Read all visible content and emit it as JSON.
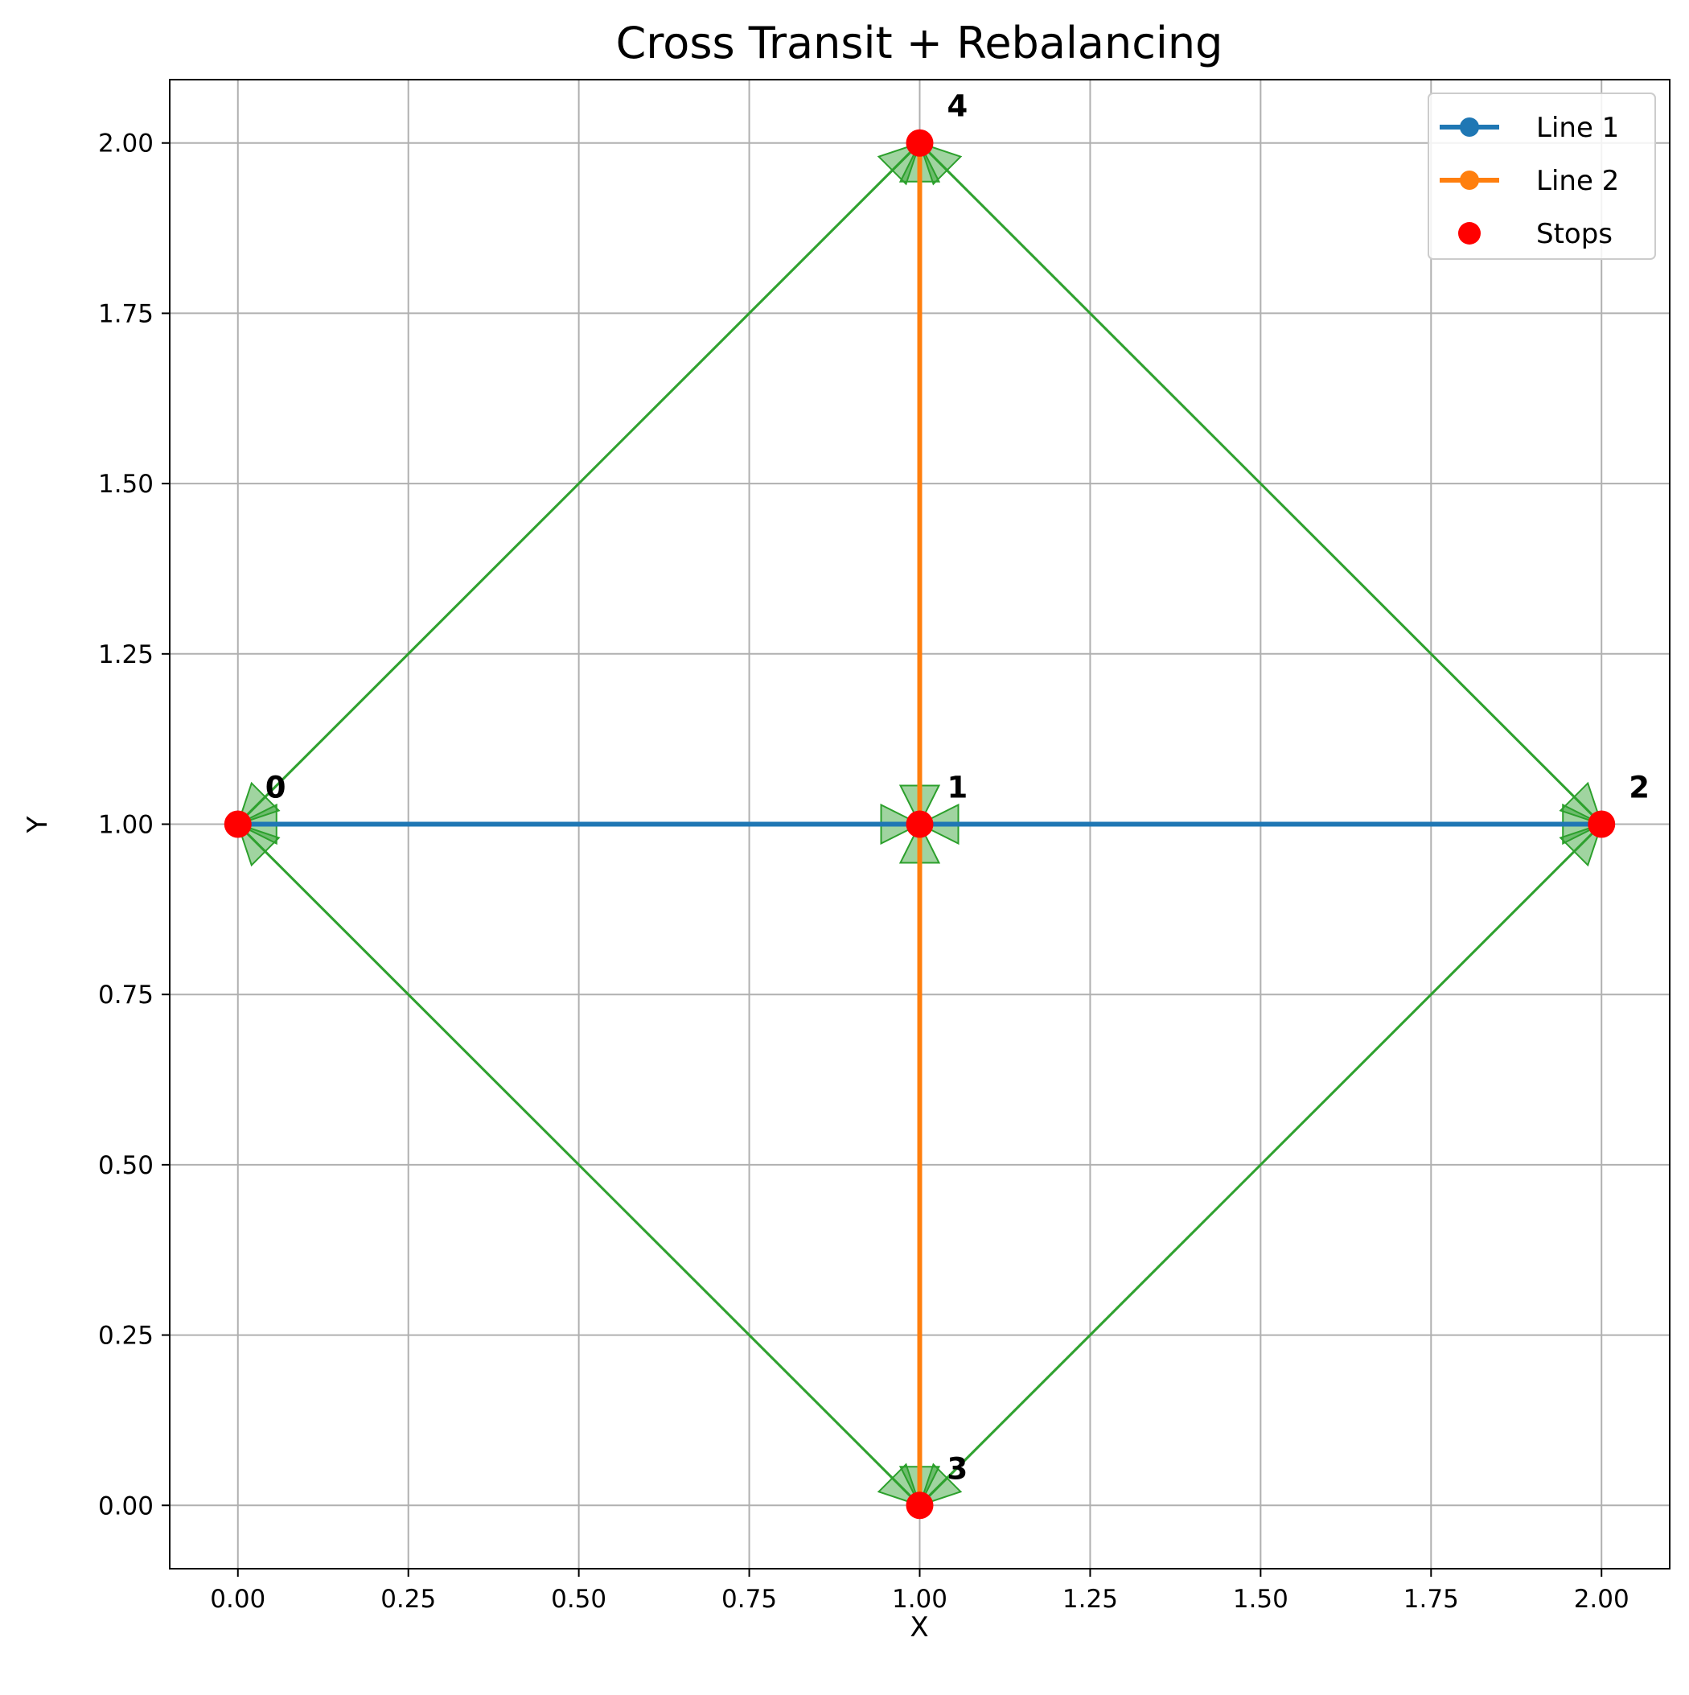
{
  "chart_data": {
    "type": "line",
    "title": "Cross Transit + Rebalancing",
    "xlabel": "X",
    "ylabel": "Y",
    "xlim": [
      -0.1,
      2.1
    ],
    "ylim": [
      -0.093,
      2.093
    ],
    "xticks": [
      0.0,
      0.25,
      0.5,
      0.75,
      1.0,
      1.25,
      1.5,
      1.75,
      2.0
    ],
    "yticks": [
      0.0,
      0.25,
      0.5,
      0.75,
      1.0,
      1.25,
      1.5,
      1.75,
      2.0
    ],
    "xtick_labels": [
      "0.00",
      "0.25",
      "0.50",
      "0.75",
      "1.00",
      "1.25",
      "1.50",
      "1.75",
      "2.00"
    ],
    "ytick_labels": [
      "0.00",
      "0.25",
      "0.50",
      "0.75",
      "1.00",
      "1.25",
      "1.50",
      "1.75",
      "2.00"
    ],
    "grid": true,
    "legend_position": "top-right",
    "stops": [
      {
        "label": "0",
        "x": 0,
        "y": 1
      },
      {
        "label": "1",
        "x": 1,
        "y": 1
      },
      {
        "label": "2",
        "x": 2,
        "y": 1
      },
      {
        "label": "3",
        "x": 1,
        "y": 0
      },
      {
        "label": "4",
        "x": 1,
        "y": 2
      }
    ],
    "series": [
      {
        "name": "Line 1",
        "color": "#1f77b4",
        "stops": [
          "0",
          "1",
          "2"
        ]
      },
      {
        "name": "Line 2",
        "color": "#ff7f0e",
        "stops": [
          "3",
          "1",
          "4"
        ]
      }
    ],
    "stops_series": {
      "name": "Stops",
      "color": "#ff0000"
    },
    "rebalancing": {
      "color": "#2ca02c",
      "edges": [
        [
          "0",
          "4"
        ],
        [
          "4",
          "0"
        ],
        [
          "4",
          "2"
        ],
        [
          "2",
          "4"
        ],
        [
          "2",
          "3"
        ],
        [
          "3",
          "2"
        ],
        [
          "3",
          "0"
        ],
        [
          "0",
          "3"
        ],
        [
          "0",
          "1"
        ],
        [
          "1",
          "0"
        ],
        [
          "1",
          "2"
        ],
        [
          "2",
          "1"
        ],
        [
          "3",
          "1"
        ],
        [
          "1",
          "3"
        ],
        [
          "1",
          "4"
        ],
        [
          "4",
          "1"
        ]
      ]
    }
  }
}
